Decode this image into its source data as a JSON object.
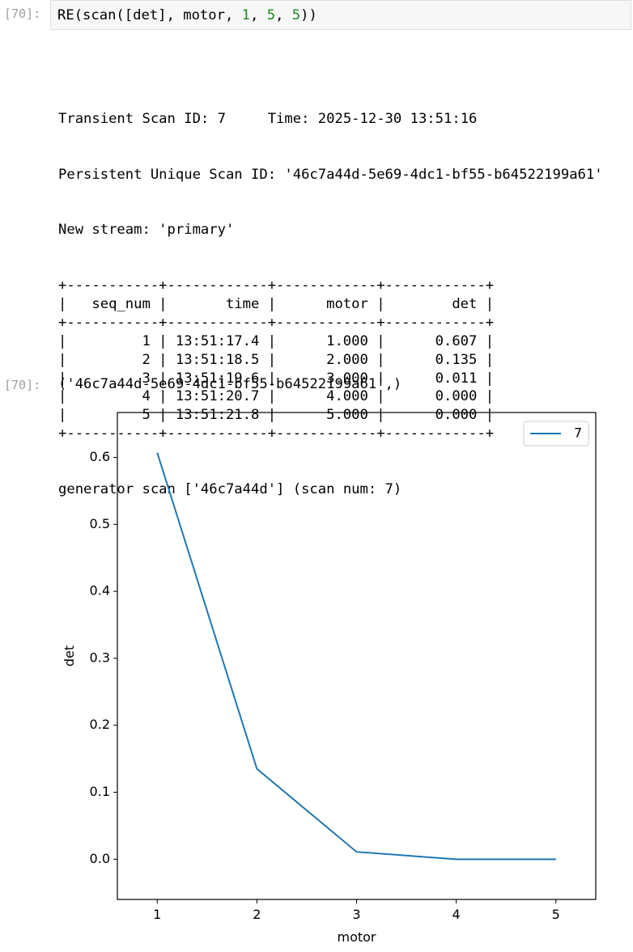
{
  "input_cell": {
    "prompt": "[70]:",
    "code": [
      {
        "text": "RE(scan([det], motor, ",
        "color": "#000000"
      },
      {
        "text": "1",
        "color": "#1a8c1a"
      },
      {
        "text": ", ",
        "color": "#000000"
      },
      {
        "text": "5",
        "color": "#1a8c1a"
      },
      {
        "text": ", ",
        "color": "#000000"
      },
      {
        "text": "5",
        "color": "#1a8c1a"
      },
      {
        "text": "))",
        "color": "#000000"
      }
    ]
  },
  "stdout": {
    "lines": [
      "Transient Scan ID: 7     Time: 2025-12-30 13:51:16",
      "Persistent Unique Scan ID: '46c7a44d-5e69-4dc1-bf55-b64522199a61'",
      "New stream: 'primary'"
    ],
    "table": {
      "headers": [
        "seq_num",
        "time",
        "motor",
        "det"
      ],
      "rows": [
        [
          "1",
          "13:51:17.4",
          "1.000",
          "0.607"
        ],
        [
          "2",
          "13:51:18.5",
          "2.000",
          "0.135"
        ],
        [
          "3",
          "13:51:19.6",
          "3.000",
          "0.011"
        ],
        [
          "4",
          "13:51:20.7",
          "4.000",
          "0.000"
        ],
        [
          "5",
          "13:51:21.8",
          "5.000",
          "0.000"
        ]
      ]
    },
    "footer": "generator scan ['46c7a44d'] (scan num: 7)"
  },
  "output_cell": {
    "prompt": "[70]:",
    "text": "('46c7a44d-5e69-4dc1-bf55-b64522199a61',)"
  },
  "chart_data": {
    "type": "line",
    "xlabel": "motor",
    "ylabel": "det",
    "x": [
      1,
      2,
      3,
      4,
      5
    ],
    "series": [
      {
        "name": "7",
        "color": "#1f77b4",
        "values": [
          0.607,
          0.135,
          0.011,
          0.0,
          0.0
        ]
      }
    ],
    "xlim": [
      0.6,
      5.4
    ],
    "ylim": [
      -0.06,
      0.667
    ],
    "xticks": [
      1,
      2,
      3,
      4,
      5
    ],
    "yticks": [
      {
        "value": 0,
        "label": "0.0"
      },
      0.1,
      0.2,
      0.3,
      0.4,
      0.5,
      0.6
    ],
    "legend": "upper right"
  }
}
